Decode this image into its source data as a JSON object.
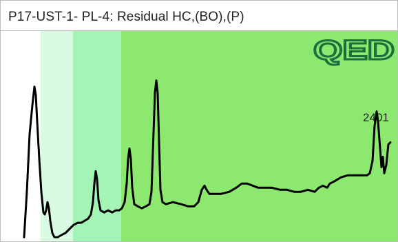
{
  "header": {
    "title": "P17-UST-1- PL-4:  Residual HC,(BO),(P)"
  },
  "logo": {
    "text": "QED"
  },
  "colors": {
    "band_1": "#ffffff",
    "band_2": "#d9fbe2",
    "band_3": "#a3f4b5",
    "band_4": "#8ce86e",
    "trace": "#000000",
    "logo": "#1a6f3c"
  },
  "chart_data": {
    "type": "line",
    "title": "P17-UST-1- PL-4:  Residual HC,(BO),(P)",
    "xlabel": "",
    "ylabel": "",
    "grid": false,
    "legend": "none",
    "annotations": [
      {
        "text": "2401",
        "near_x": 547
      }
    ],
    "background_bands": [
      {
        "x_from": 0,
        "x_to": 58,
        "color": "#ffffff"
      },
      {
        "x_from": 58,
        "x_to": 105,
        "color": "#d9fbe2"
      },
      {
        "x_from": 105,
        "x_to": 175,
        "color": "#a3f4b5"
      },
      {
        "x_from": 175,
        "x_to": 578,
        "color": "#8ce86e"
      }
    ],
    "xlim": [
      0,
      578
    ],
    "ylim": [
      0,
      100
    ],
    "series": [
      {
        "values": [
          [
            34,
            2
          ],
          [
            38,
            24
          ],
          [
            42,
            52
          ],
          [
            46,
            66
          ],
          [
            49,
            75
          ],
          [
            51,
            71
          ],
          [
            53,
            58
          ],
          [
            56,
            40
          ],
          [
            59,
            24
          ],
          [
            62,
            14
          ],
          [
            64,
            13
          ],
          [
            66,
            15
          ],
          [
            68,
            19
          ],
          [
            70,
            16
          ],
          [
            72,
            10
          ],
          [
            75,
            4
          ],
          [
            78,
            2
          ],
          [
            83,
            2
          ],
          [
            88,
            3
          ],
          [
            94,
            4
          ],
          [
            100,
            6
          ],
          [
            106,
            8
          ],
          [
            112,
            9
          ],
          [
            117,
            9
          ],
          [
            122,
            10
          ],
          [
            127,
            11
          ],
          [
            131,
            13
          ],
          [
            134,
            19
          ],
          [
            136,
            28
          ],
          [
            138,
            34
          ],
          [
            140,
            30
          ],
          [
            142,
            20
          ],
          [
            145,
            15
          ],
          [
            150,
            14
          ],
          [
            156,
            15
          ],
          [
            162,
            14
          ],
          [
            167,
            15
          ],
          [
            172,
            15
          ],
          [
            176,
            16
          ],
          [
            180,
            19
          ],
          [
            183,
            28
          ],
          [
            185,
            40
          ],
          [
            187,
            45
          ],
          [
            189,
            40
          ],
          [
            191,
            26
          ],
          [
            194,
            18
          ],
          [
            199,
            17
          ],
          [
            205,
            16
          ],
          [
            211,
            17
          ],
          [
            216,
            18
          ],
          [
            219,
            24
          ],
          [
            222,
            53
          ],
          [
            224,
            72
          ],
          [
            226,
            78
          ],
          [
            228,
            72
          ],
          [
            230,
            48
          ],
          [
            232,
            25
          ],
          [
            235,
            19
          ],
          [
            240,
            18
          ],
          [
            250,
            19
          ],
          [
            262,
            18
          ],
          [
            272,
            17
          ],
          [
            281,
            17
          ],
          [
            287,
            19
          ],
          [
            292,
            25
          ],
          [
            296,
            27
          ],
          [
            299,
            25
          ],
          [
            303,
            23
          ],
          [
            310,
            23
          ],
          [
            320,
            23
          ],
          [
            332,
            24
          ],
          [
            342,
            26
          ],
          [
            350,
            28
          ],
          [
            358,
            28
          ],
          [
            366,
            27
          ],
          [
            374,
            26
          ],
          [
            384,
            26
          ],
          [
            394,
            26
          ],
          [
            406,
            25
          ],
          [
            416,
            25
          ],
          [
            426,
            24
          ],
          [
            436,
            24
          ],
          [
            446,
            25
          ],
          [
            456,
            24
          ],
          [
            462,
            26
          ],
          [
            468,
            27
          ],
          [
            474,
            26
          ],
          [
            478,
            28
          ],
          [
            484,
            29
          ],
          [
            494,
            31
          ],
          [
            504,
            32
          ],
          [
            514,
            32
          ],
          [
            524,
            32
          ],
          [
            532,
            32
          ],
          [
            536,
            33
          ],
          [
            540,
            39
          ],
          [
            543,
            56
          ],
          [
            546,
            63
          ],
          [
            548,
            58
          ],
          [
            551,
            45
          ],
          [
            553,
            36
          ],
          [
            555,
            41
          ],
          [
            557,
            33
          ],
          [
            560,
            37
          ],
          [
            563,
            47
          ],
          [
            566,
            48
          ]
        ]
      }
    ]
  }
}
